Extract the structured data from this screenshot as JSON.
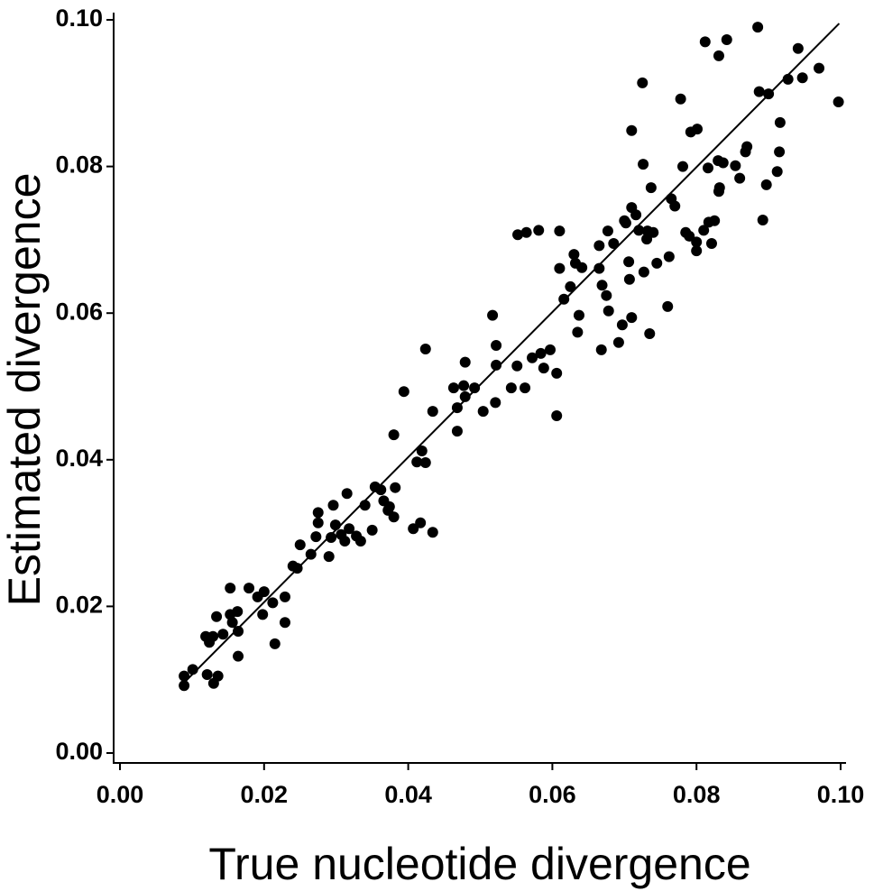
{
  "chart_data": {
    "type": "scatter",
    "x_label": "True nucleotide divergence",
    "y_label": "Estimated divergence",
    "xlim": [
      0,
      0.1
    ],
    "ylim": [
      0,
      0.1
    ],
    "xticks": [
      {
        "value": 0,
        "label": "0.00"
      },
      {
        "value": 0.02,
        "label": "0.02"
      },
      {
        "value": 0.04,
        "label": "0.04"
      },
      {
        "value": 0.06,
        "label": "0.06"
      },
      {
        "value": 0.08,
        "label": "0.08"
      },
      {
        "value": 0.1,
        "label": "0.10"
      }
    ],
    "yticks": [
      {
        "value": 0,
        "label": "0.00"
      },
      {
        "value": 0.02,
        "label": "0.02"
      },
      {
        "value": 0.04,
        "label": "0.04"
      },
      {
        "value": 0.06,
        "label": "0.06"
      },
      {
        "value": 0.08,
        "label": "0.08"
      },
      {
        "value": 0.1,
        "label": "0.10"
      }
    ],
    "fit_line": {
      "x": [
        0.0085,
        0.0998
      ],
      "values": [
        0.0092,
        0.0995
      ],
      "color": "#000000"
    },
    "series": [
      {
        "color": "#000000",
        "x": [
          0.0089,
          0.0089,
          0.0101,
          0.0119,
          0.0124,
          0.0129,
          0.0121,
          0.013,
          0.0136,
          0.0134,
          0.0143,
          0.0153,
          0.0156,
          0.0163,
          0.0164,
          0.0164,
          0.0153,
          0.0179,
          0.0191,
          0.02,
          0.0198,
          0.0212,
          0.0215,
          0.0229,
          0.0229,
          0.024,
          0.0246,
          0.025,
          0.0265,
          0.0272,
          0.0275,
          0.0275,
          0.029,
          0.0293,
          0.0296,
          0.0299,
          0.0307,
          0.0312,
          0.0315,
          0.0318,
          0.0328,
          0.0334,
          0.034,
          0.035,
          0.0354,
          0.0362,
          0.0366,
          0.0372,
          0.0374,
          0.038,
          0.0382,
          0.038,
          0.0394,
          0.0407,
          0.0412,
          0.0417,
          0.0419,
          0.0424,
          0.0424,
          0.0434,
          0.0434,
          0.0463,
          0.0468,
          0.0468,
          0.0477,
          0.0479,
          0.0479,
          0.0492,
          0.0504,
          0.0517,
          0.0521,
          0.0522,
          0.0522,
          0.0543,
          0.0551,
          0.0552,
          0.0564,
          0.0562,
          0.0572,
          0.0581,
          0.0584,
          0.0588,
          0.0597,
          0.0606,
          0.0606,
          0.061,
          0.061,
          0.0616,
          0.0625,
          0.063,
          0.0632,
          0.0635,
          0.0637,
          0.0641,
          0.0665,
          0.0665,
          0.0668,
          0.0669,
          0.0675,
          0.0677,
          0.0678,
          0.0685,
          0.0692,
          0.0697,
          0.07,
          0.0702,
          0.0706,
          0.0707,
          0.071,
          0.071,
          0.071,
          0.0716,
          0.072,
          0.0725,
          0.0726,
          0.0727,
          0.0731,
          0.0732,
          0.0735,
          0.0737,
          0.074,
          0.0745,
          0.076,
          0.0762,
          0.0765,
          0.077,
          0.0778,
          0.0781,
          0.0785,
          0.079,
          0.0792,
          0.08,
          0.0801,
          0.08,
          0.081,
          0.0812,
          0.0816,
          0.0817,
          0.0821,
          0.0825,
          0.083,
          0.0831,
          0.0832,
          0.0831,
          0.0837,
          0.0842,
          0.0854,
          0.086,
          0.0868,
          0.087,
          0.0885,
          0.0887,
          0.0892,
          0.0897,
          0.09,
          0.0912,
          0.0915,
          0.0916,
          0.0927,
          0.0941,
          0.0947,
          0.097,
          0.0997
        ],
        "values": [
          0.0105,
          0.0092,
          0.0114,
          0.0159,
          0.0151,
          0.0159,
          0.0107,
          0.0095,
          0.0105,
          0.0186,
          0.0162,
          0.0189,
          0.0178,
          0.0193,
          0.0166,
          0.0132,
          0.0225,
          0.0225,
          0.0213,
          0.022,
          0.0189,
          0.0205,
          0.0149,
          0.0213,
          0.0178,
          0.0255,
          0.0252,
          0.0284,
          0.0271,
          0.0295,
          0.0314,
          0.0328,
          0.0268,
          0.0294,
          0.0338,
          0.0311,
          0.0298,
          0.0289,
          0.0354,
          0.0306,
          0.0296,
          0.0289,
          0.0338,
          0.0304,
          0.0363,
          0.0359,
          0.0344,
          0.0331,
          0.0336,
          0.0322,
          0.0362,
          0.0434,
          0.0493,
          0.0306,
          0.0397,
          0.0314,
          0.0412,
          0.0396,
          0.0551,
          0.0301,
          0.0466,
          0.0498,
          0.0439,
          0.0471,
          0.0501,
          0.0533,
          0.0486,
          0.0498,
          0.0466,
          0.0597,
          0.0478,
          0.0556,
          0.0529,
          0.0498,
          0.0528,
          0.0707,
          0.071,
          0.0498,
          0.0539,
          0.0713,
          0.0545,
          0.0525,
          0.055,
          0.0518,
          0.046,
          0.0712,
          0.0661,
          0.0619,
          0.0636,
          0.068,
          0.0668,
          0.0574,
          0.0597,
          0.0662,
          0.0692,
          0.0661,
          0.055,
          0.0638,
          0.0624,
          0.0712,
          0.0603,
          0.0695,
          0.056,
          0.0584,
          0.0726,
          0.0723,
          0.067,
          0.0646,
          0.0594,
          0.0744,
          0.0849,
          0.0734,
          0.0713,
          0.0914,
          0.0803,
          0.0656,
          0.0701,
          0.0712,
          0.0572,
          0.0771,
          0.071,
          0.0668,
          0.0609,
          0.0677,
          0.0756,
          0.0746,
          0.0892,
          0.08,
          0.071,
          0.0705,
          0.0847,
          0.0697,
          0.0851,
          0.0685,
          0.0713,
          0.097,
          0.0798,
          0.0724,
          0.0695,
          0.0726,
          0.0808,
          0.0951,
          0.0771,
          0.0766,
          0.0805,
          0.0973,
          0.0801,
          0.0784,
          0.082,
          0.0827,
          0.099,
          0.0902,
          0.0727,
          0.0775,
          0.0899,
          0.0793,
          0.082,
          0.086,
          0.0919,
          0.0961,
          0.0921,
          0.0934,
          0.0888
        ]
      }
    ]
  }
}
